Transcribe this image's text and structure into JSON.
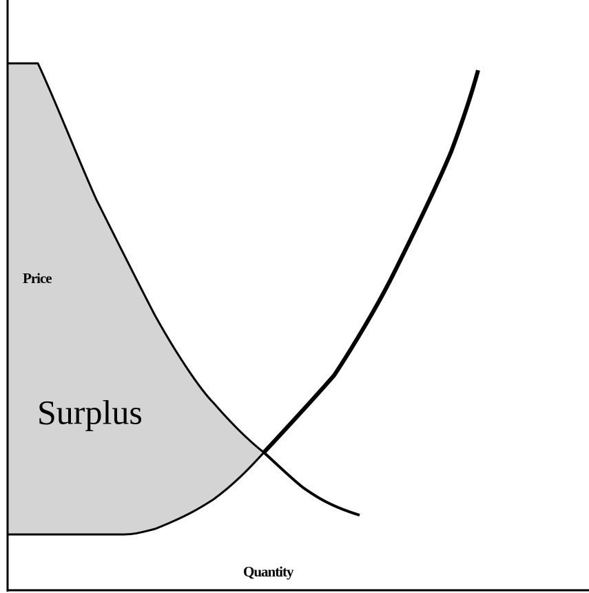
{
  "axes": {
    "y_label": "Price",
    "x_label": "Quantity"
  },
  "region": {
    "label": "Surplus"
  }
}
